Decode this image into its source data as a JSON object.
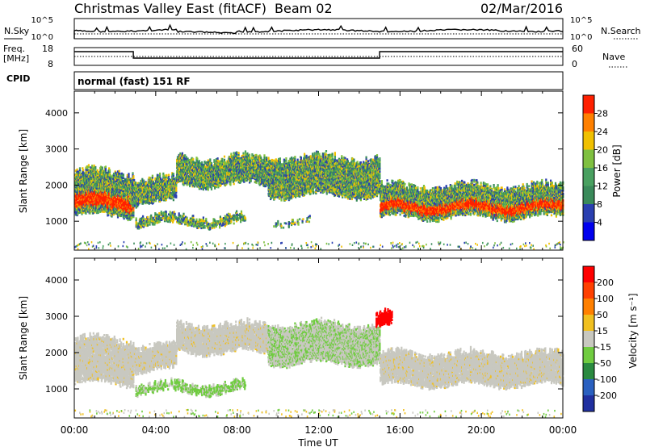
{
  "header": {
    "title": "Christmas Valley East (fitACF)",
    "beam": "Beam 02",
    "date": "02/Mar/2016"
  },
  "top_panels": {
    "nsky_label": "N.Sky",
    "nsearch_label": "N.Search",
    "nsky_ticks": [
      "10^5",
      "10^0"
    ],
    "nsearch_ticks": [
      "10^5",
      "10^0"
    ],
    "freq_label_1": "Freq.",
    "freq_label_2": "[MHz]",
    "freq_ticks": [
      "18",
      "8"
    ],
    "nave_label": "Nave",
    "nave_ticks": [
      "60",
      "0"
    ],
    "cpid_label": "CPID",
    "cpid_text": "normal (fast) 151 RF"
  },
  "chart_data": [
    {
      "type": "heatmap",
      "name": "power-panel",
      "xlabel": "",
      "ylabel": "Slant Range [km]",
      "yticks": [
        "1000",
        "2000",
        "3000",
        "4000"
      ],
      "ylim": [
        200,
        4600
      ],
      "colorbar_label": "Power [dB]",
      "colorbar_ticks": [
        "4",
        "8",
        "12",
        "16",
        "20",
        "24",
        "28"
      ],
      "colorbar_colors": [
        "#0000ee",
        "#2a3fb0",
        "#3a8a5a",
        "#49a060",
        "#7fc040",
        "#f0c000",
        "#ff8000",
        "#ff2000"
      ],
      "regions": [
        {
          "t0": 0.0,
          "t1": 2.9,
          "r0": 1150,
          "r1": 2500,
          "core": true
        },
        {
          "t0": 2.7,
          "t1": 5.0,
          "r0": 1500,
          "r1": 2300,
          "core": false
        },
        {
          "t0": 5.0,
          "t1": 9.5,
          "r0": 2000,
          "r1": 2900,
          "core": false
        },
        {
          "t0": 9.5,
          "t1": 15.0,
          "r0": 1700,
          "r1": 2900,
          "core": false
        },
        {
          "t0": 15.0,
          "t1": 24.0,
          "r0": 1100,
          "r1": 2100,
          "core": true
        },
        {
          "t0": 3.0,
          "t1": 8.4,
          "r0": 900,
          "r1": 1250,
          "core": false
        },
        {
          "t0": 9.7,
          "t1": 11.6,
          "r0": 950,
          "r1": 1150,
          "core": false
        }
      ]
    },
    {
      "type": "heatmap",
      "name": "velocity-panel",
      "xlabel": "Time UT",
      "ylabel": "Slant Range [km]",
      "yticks": [
        "1000",
        "2000",
        "3000",
        "4000"
      ],
      "ylim": [
        200,
        4600
      ],
      "xticks": [
        "00:00",
        "04:00",
        "08:00",
        "12:00",
        "16:00",
        "20:00",
        "00:00"
      ],
      "xlim": [
        0,
        24
      ],
      "colorbar_label": "Velocity [m s⁻¹]",
      "colorbar_ticks": [
        "200",
        "100",
        "50",
        "15",
        "-15",
        "-50",
        "-100",
        "-200"
      ],
      "colorbar_colors": [
        "#2030a0",
        "#2a60c0",
        "#2a8a40",
        "#70cc40",
        "#c8c8c0",
        "#f0c020",
        "#ff8000",
        "#ff4000",
        "#ff0000"
      ],
      "regions": [
        {
          "t0": 0.0,
          "t1": 2.9,
          "r0": 1150,
          "r1": 2500,
          "color": "gray"
        },
        {
          "t0": 2.7,
          "t1": 5.0,
          "r0": 1500,
          "r1": 2300,
          "color": "gray"
        },
        {
          "t0": 5.0,
          "t1": 9.5,
          "r0": 2000,
          "r1": 2900,
          "color": "gray"
        },
        {
          "t0": 9.5,
          "t1": 15.0,
          "r0": 1700,
          "r1": 2900,
          "color": "mixed-green"
        },
        {
          "t0": 15.0,
          "t1": 24.0,
          "r0": 1100,
          "r1": 2100,
          "color": "gray"
        },
        {
          "t0": 3.0,
          "t1": 8.4,
          "r0": 900,
          "r1": 1250,
          "color": "green"
        },
        {
          "t0": 14.8,
          "t1": 15.6,
          "r0": 2700,
          "r1": 3200,
          "color": "red"
        }
      ]
    }
  ]
}
